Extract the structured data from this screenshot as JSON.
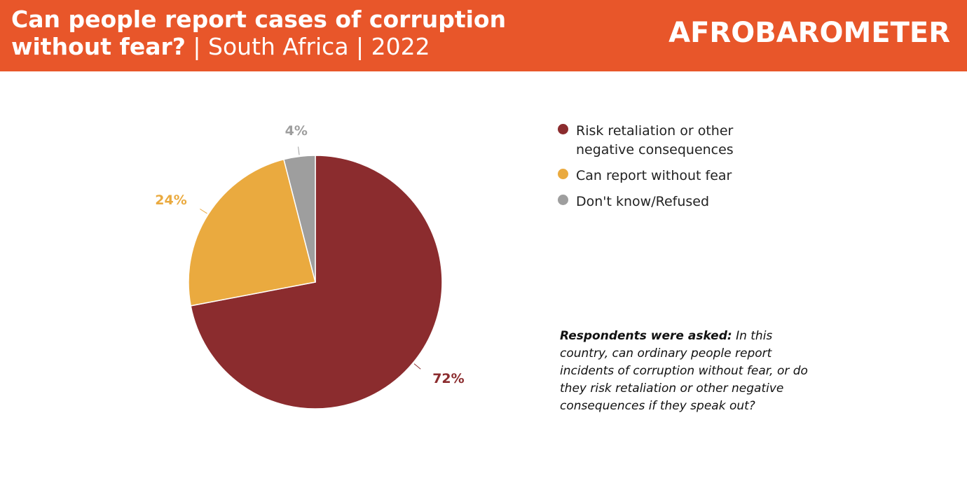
{
  "chart_data": {
    "type": "pie",
    "title": "Can people report cases of corruption without fear?",
    "subtitle": "| South Africa  | 2022",
    "categories": [
      "Risk retaliation or other negative consequences",
      "Can report without fear",
      "Don't know/Refused"
    ],
    "values": [
      72,
      24,
      4
    ],
    "value_labels": [
      "72%",
      "24%",
      "4%"
    ],
    "colors": [
      "#8b2c2e",
      "#eaaa3f",
      "#9e9e9e"
    ]
  },
  "logo": "AFROBAROMETER",
  "note": {
    "lead": "Respondents were asked:",
    "text": "In this country, can ordinary people report incidents of corruption without fear, or do they risk retaliation or other negative consequences if they speak out?"
  }
}
